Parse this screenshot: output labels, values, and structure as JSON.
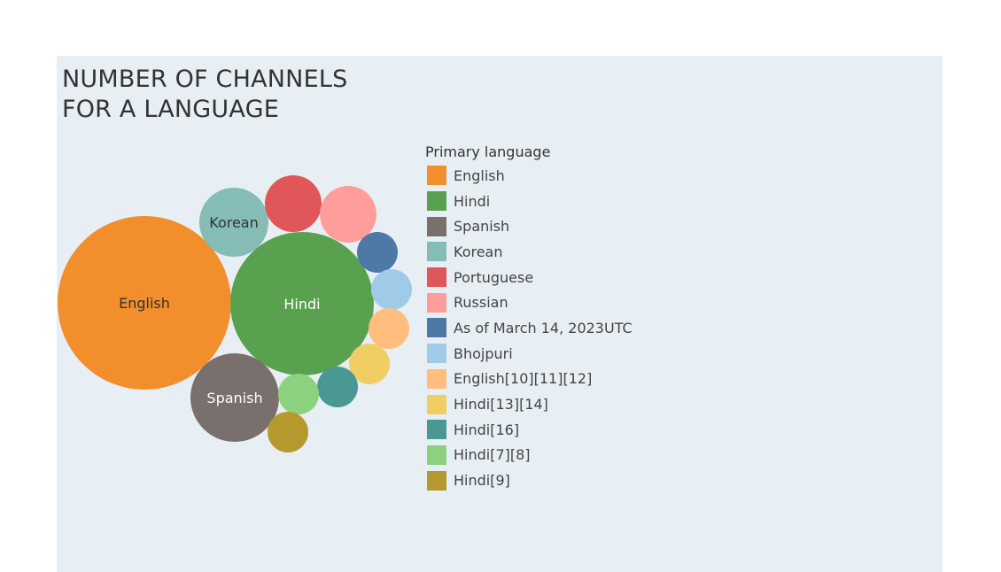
{
  "chart_data": {
    "type": "bubble",
    "title_lines": [
      "NUMBER OF CHANNELS",
      "FOR A LANGUAGE"
    ],
    "legend_title": "Primary language",
    "series": [
      {
        "name": "English",
        "color": "#f28e2b",
        "label": "English",
        "value": 37
      },
      {
        "name": "Hindi",
        "color": "#59a14f",
        "label": "Hindi",
        "value": 25
      },
      {
        "name": "Spanish",
        "color": "#79706e",
        "label": "Spanish",
        "value": 10
      },
      {
        "name": "Korean",
        "color": "#86bcb6",
        "label": "Korean",
        "value": 6
      },
      {
        "name": "Portuguese",
        "color": "#e15759",
        "label": "",
        "value": 4
      },
      {
        "name": "Russian",
        "color": "#ff9d9a",
        "label": "",
        "value": 4
      },
      {
        "name": "As of March 14, 2023UTC",
        "color": "#4e79a7",
        "label": "",
        "value": 2
      },
      {
        "name": "Bhojpuri",
        "color": "#a0cbe8",
        "label": "",
        "value": 2
      },
      {
        "name": "English[10][11][12]",
        "color": "#ffbe7d",
        "label": "",
        "value": 2
      },
      {
        "name": "Hindi[13][14]",
        "color": "#f1ce63",
        "label": "",
        "value": 2
      },
      {
        "name": "Hindi[16]",
        "color": "#499894",
        "label": "",
        "value": 2
      },
      {
        "name": "Hindi[7][8]",
        "color": "#8cd17d",
        "label": "",
        "value": 2
      },
      {
        "name": "Hindi[9]",
        "color": "#b6992d",
        "label": "",
        "value": 2
      }
    ]
  }
}
